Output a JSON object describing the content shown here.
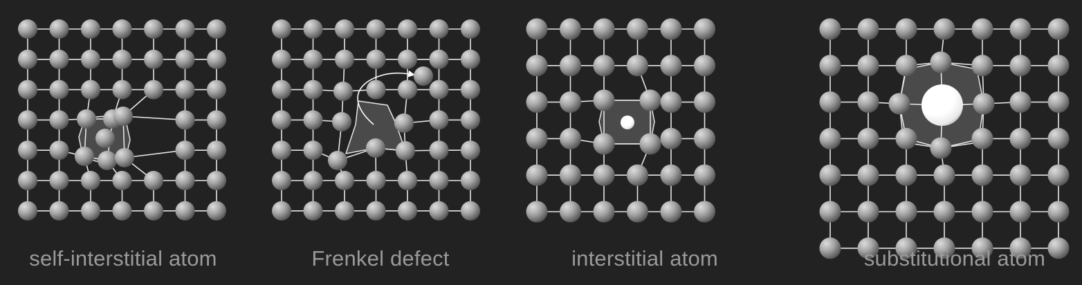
{
  "panels": [
    {
      "id": "self-interstitial",
      "caption": "self-interstitial atom"
    },
    {
      "id": "frenkel",
      "caption": "Frenkel defect"
    },
    {
      "id": "interstitial",
      "caption": "interstitial atom"
    },
    {
      "id": "substitutional",
      "caption": "substitutional atom"
    }
  ],
  "colors": {
    "background": "#222222",
    "bond": "#e6e6e6",
    "atom_light": "#d4d4d4",
    "atom_dark": "#5a5a5a",
    "defect_region": "#4a4a4a",
    "caption": "#9a9a9a"
  },
  "icons": {
    "atom": "gray-shaded-sphere",
    "small-interstitial": "small-white-sphere",
    "large-substitutional": "large-white-sphere",
    "jump-path": "curved-arrow"
  }
}
